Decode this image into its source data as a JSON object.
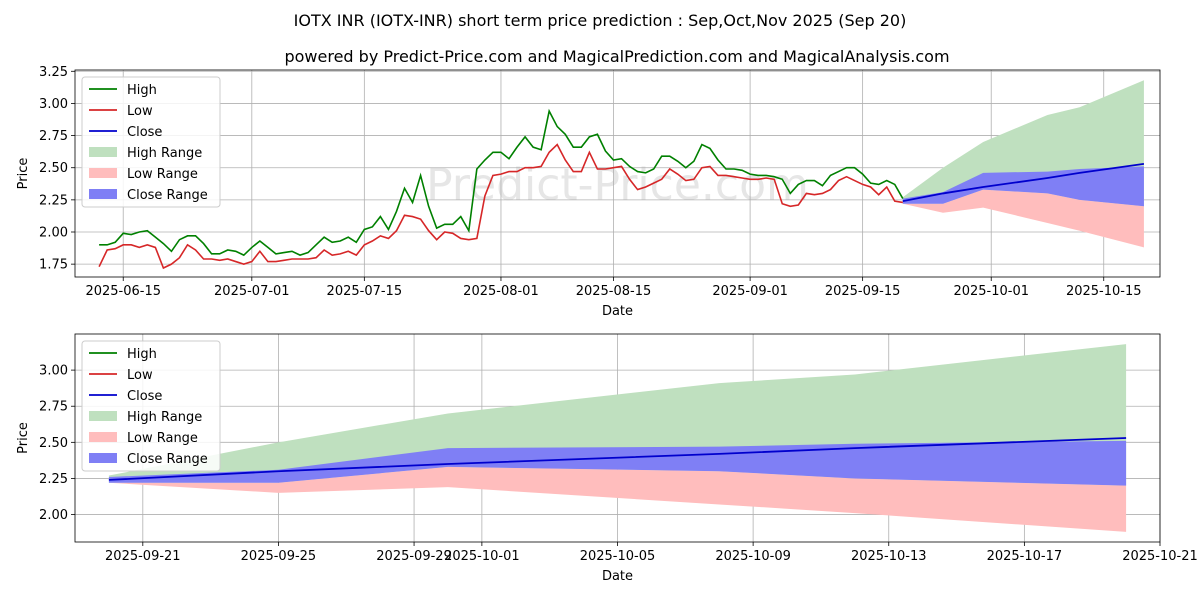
{
  "title": "IOTX INR (IOTX-INR) short term price prediction : Sep,Oct,Nov 2025 (Sep 20)",
  "subtitle": "powered by Predict-Price.com and MagicalPrediction.com and MagicalAnalysis.com",
  "watermark": "Predict-Price.com",
  "colors": {
    "high": "#008000",
    "low": "#d62728",
    "close": "#0000cd",
    "high_range": "#bfe0bf",
    "low_range": "#ffbdbd",
    "close_range": "#7f7ff5",
    "grid": "#b0b0b0"
  },
  "chart_data": [
    {
      "type": "line",
      "name": "history-and-forecast",
      "xlabel": "Date",
      "ylabel": "Price",
      "xlim": [
        "2025-06-09",
        "2025-10-22"
      ],
      "ylim": [
        1.65,
        3.26
      ],
      "yticks": [
        1.75,
        2.0,
        2.25,
        2.5,
        2.75,
        3.0,
        3.25
      ],
      "ytick_labels": [
        "1.75",
        "2.00",
        "2.25",
        "2.50",
        "2.75",
        "3.00",
        "3.25"
      ],
      "xticks": [
        "2025-06-15",
        "2025-07-01",
        "2025-07-15",
        "2025-08-01",
        "2025-08-15",
        "2025-09-01",
        "2025-09-15",
        "2025-10-01",
        "2025-10-15"
      ],
      "xtick_labels": [
        "2025-06-15",
        "2025-07-01",
        "2025-07-15",
        "2025-08-01",
        "2025-08-15",
        "2025-09-01",
        "2025-09-15",
        "2025-10-01",
        "2025-10-15"
      ],
      "grid": true,
      "legend": "upper-left",
      "legend_labels": [
        "High",
        "Low",
        "Close",
        "High Range",
        "Low Range",
        "Close Range"
      ],
      "history": {
        "start": "2025-06-12",
        "high": [
          1.9,
          1.9,
          1.92,
          1.99,
          1.98,
          2.0,
          2.01,
          1.96,
          1.91,
          1.85,
          1.94,
          1.97,
          1.97,
          1.91,
          1.83,
          1.83,
          1.86,
          1.85,
          1.82,
          1.88,
          1.93,
          1.88,
          1.83,
          1.84,
          1.85,
          1.82,
          1.84,
          1.9,
          1.96,
          1.92,
          1.93,
          1.96,
          1.92,
          2.02,
          2.04,
          2.12,
          2.02,
          2.16,
          2.34,
          2.23,
          2.44,
          2.2,
          2.03,
          2.06,
          2.06,
          2.12,
          2.01,
          2.49,
          2.56,
          2.62,
          2.62,
          2.57,
          2.66,
          2.74,
          2.66,
          2.64,
          2.94,
          2.82,
          2.76,
          2.66,
          2.66,
          2.74,
          2.76,
          2.63,
          2.56,
          2.57,
          2.51,
          2.47,
          2.46,
          2.49,
          2.59,
          2.59,
          2.55,
          2.5,
          2.55,
          2.68,
          2.65,
          2.56,
          2.49,
          2.49,
          2.48,
          2.45,
          2.44,
          2.44,
          2.43,
          2.41,
          2.3,
          2.37,
          2.4,
          2.4,
          2.36,
          2.44,
          2.47,
          2.5,
          2.5,
          2.45,
          2.38,
          2.37,
          2.4,
          2.37,
          2.26
        ],
        "low": [
          1.73,
          1.86,
          1.87,
          1.9,
          1.9,
          1.88,
          1.9,
          1.88,
          1.72,
          1.75,
          1.8,
          1.9,
          1.86,
          1.79,
          1.79,
          1.78,
          1.79,
          1.77,
          1.75,
          1.77,
          1.85,
          1.77,
          1.77,
          1.78,
          1.79,
          1.79,
          1.79,
          1.8,
          1.86,
          1.82,
          1.83,
          1.85,
          1.82,
          1.9,
          1.93,
          1.97,
          1.95,
          2.01,
          2.13,
          2.12,
          2.1,
          2.01,
          1.94,
          2.0,
          1.99,
          1.95,
          1.94,
          1.95,
          2.28,
          2.44,
          2.45,
          2.47,
          2.47,
          2.5,
          2.5,
          2.51,
          2.62,
          2.68,
          2.56,
          2.47,
          2.47,
          2.62,
          2.49,
          2.49,
          2.5,
          2.51,
          2.41,
          2.33,
          2.35,
          2.38,
          2.41,
          2.49,
          2.45,
          2.4,
          2.41,
          2.5,
          2.51,
          2.44,
          2.44,
          2.43,
          2.42,
          2.41,
          2.41,
          2.42,
          2.41,
          2.22,
          2.2,
          2.21,
          2.3,
          2.29,
          2.3,
          2.33,
          2.4,
          2.43,
          2.4,
          2.37,
          2.35,
          2.29,
          2.35,
          2.24,
          2.23
        ]
      },
      "forecast": {
        "dates": [
          "2025-09-20",
          "2025-09-25",
          "2025-09-30",
          "2025-10-08",
          "2025-10-12",
          "2025-10-20"
        ],
        "high_range_upper": [
          2.27,
          2.5,
          2.7,
          2.91,
          2.97,
          3.18
        ],
        "low_range_lower": [
          2.22,
          2.15,
          2.19,
          2.07,
          2.01,
          1.88
        ],
        "close_range_upper": [
          2.26,
          2.31,
          2.46,
          2.47,
          2.49,
          2.51
        ],
        "close_range_lower": [
          2.22,
          2.22,
          2.33,
          2.3,
          2.25,
          2.2
        ],
        "close": [
          2.24,
          2.3,
          2.35,
          2.42,
          2.46,
          2.53
        ]
      }
    },
    {
      "type": "line",
      "name": "forecast-detail",
      "xlabel": "Date",
      "ylabel": "Price",
      "xlim": [
        "2025-09-19",
        "2025-10-21"
      ],
      "ylim": [
        1.81,
        3.25
      ],
      "yticks": [
        2.0,
        2.25,
        2.5,
        2.75,
        3.0
      ],
      "ytick_labels": [
        "2.00",
        "2.25",
        "2.50",
        "2.75",
        "3.00"
      ],
      "xticks": [
        "2025-09-21",
        "2025-09-25",
        "2025-09-29",
        "2025-10-01",
        "2025-10-05",
        "2025-10-09",
        "2025-10-13",
        "2025-10-17",
        "2025-10-21"
      ],
      "xtick_labels": [
        "2025-09-21",
        "2025-09-25",
        "2025-09-29",
        "2025-10-01",
        "2025-10-05",
        "2025-10-09",
        "2025-10-13",
        "2025-10-17",
        "2025-10-21"
      ],
      "grid": true,
      "legend": "upper-left",
      "legend_labels": [
        "High",
        "Low",
        "Close",
        "High Range",
        "Low Range",
        "Close Range"
      ]
    }
  ]
}
